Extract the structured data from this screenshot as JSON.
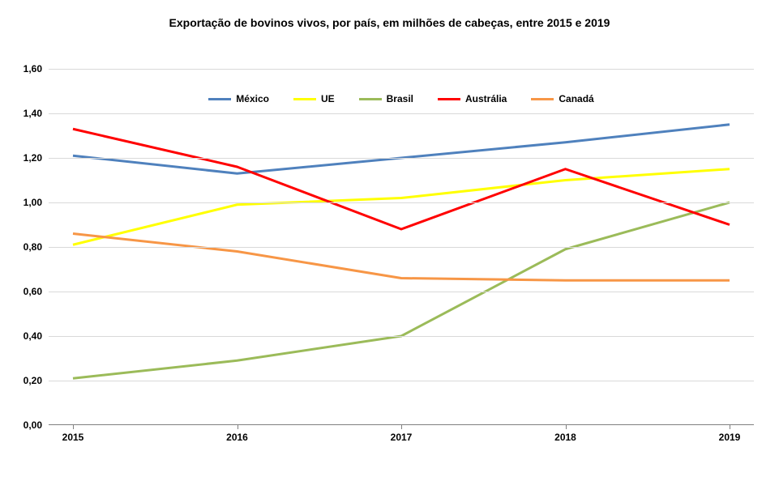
{
  "chart": {
    "type": "line",
    "title": "Exportação de bovinos vivos,  por país, em milhões de cabeças, entre 2015 e 2019",
    "title_fontsize": 14,
    "title_fontweight": "bold",
    "background_color": "#ffffff",
    "grid_color": "#d9d9d9",
    "axis_color": "#808080",
    "label_fontsize": 12,
    "label_fontweight": "bold",
    "line_width": 3,
    "categories": [
      "2015",
      "2016",
      "2017",
      "2018",
      "2019"
    ],
    "ylim": [
      0.0,
      1.6
    ],
    "ytick_step": 0.2,
    "ylabels": [
      "0,00",
      "0,20",
      "0,40",
      "0,60",
      "0,80",
      "1,00",
      "1,20",
      "1,40",
      "1,60"
    ],
    "series": [
      {
        "name": "México",
        "color": "#4f81bd",
        "values": [
          1.21,
          1.13,
          1.2,
          1.27,
          1.35
        ]
      },
      {
        "name": "UE",
        "color": "#ffff00",
        "values": [
          0.81,
          0.99,
          1.02,
          1.1,
          1.15
        ]
      },
      {
        "name": "Brasil",
        "color": "#9bbb59",
        "values": [
          0.21,
          0.29,
          0.4,
          0.79,
          1.0
        ]
      },
      {
        "name": "Austrália",
        "color": "#ff0000",
        "values": [
          1.33,
          1.16,
          0.88,
          1.15,
          0.9
        ]
      },
      {
        "name": "Canadá",
        "color": "#f79646",
        "values": [
          0.86,
          0.78,
          0.66,
          0.65,
          0.65
        ]
      }
    ],
    "legend_position": "top"
  }
}
